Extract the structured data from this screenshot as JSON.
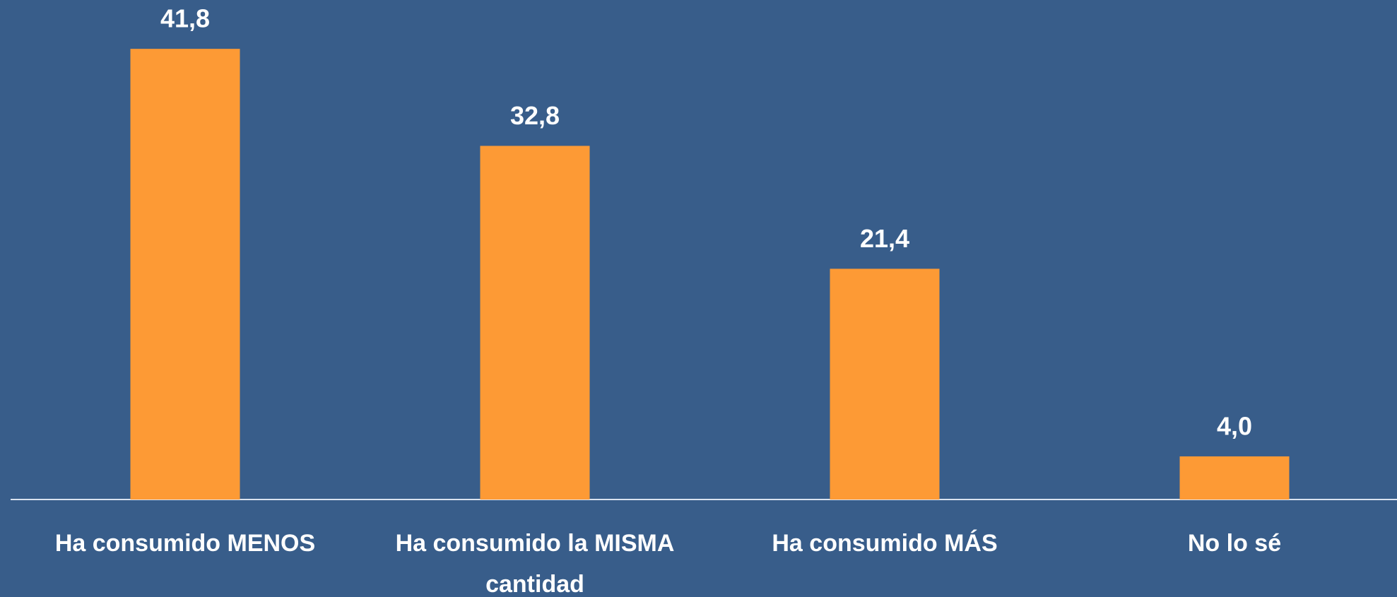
{
  "chart_data": {
    "type": "bar",
    "categories": [
      "Ha consumido MENOS",
      "Ha consumido la MISMA cantidad",
      "Ha consumido MÁS",
      "No lo sé"
    ],
    "values": [
      41.8,
      32.8,
      21.4,
      4.0
    ],
    "value_labels": [
      "41,8",
      "32,8",
      "21,4",
      "4,0"
    ],
    "color": "#fd9a35"
  }
}
